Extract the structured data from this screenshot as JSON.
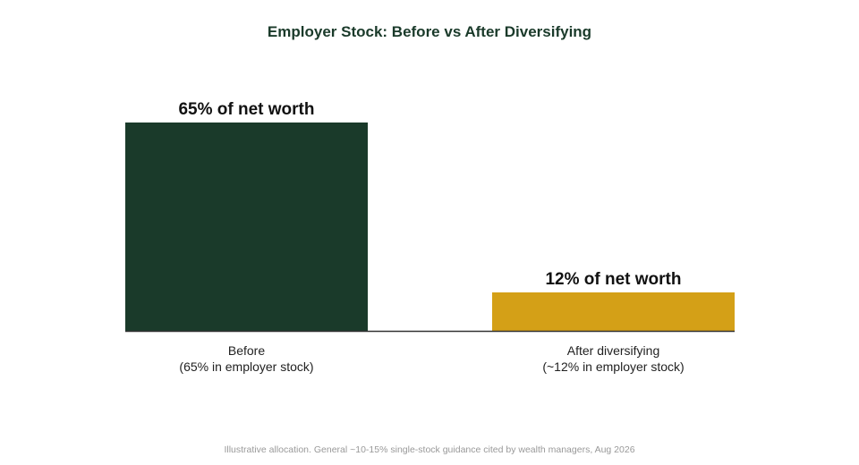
{
  "chart_data": {
    "type": "bar",
    "title": "Employer Stock: Before vs After Diversifying",
    "categories": [
      [
        "Before",
        "(65% in employer stock)"
      ],
      [
        "After diversifying",
        "(~12% in employer stock)"
      ]
    ],
    "values": [
      65,
      12
    ],
    "value_labels": [
      "65% of net worth",
      "12% of net worth"
    ],
    "bar_colors": [
      "#1a3a2a",
      "#d4a017"
    ],
    "title_color": "#1a3a2a",
    "ylim": [
      0,
      65
    ],
    "grid": false,
    "legend": "none",
    "xlabel": "",
    "ylabel": ""
  },
  "footnote": "Illustrative allocation. General ~10-15% single-stock guidance cited by wealth managers, Aug 2026"
}
